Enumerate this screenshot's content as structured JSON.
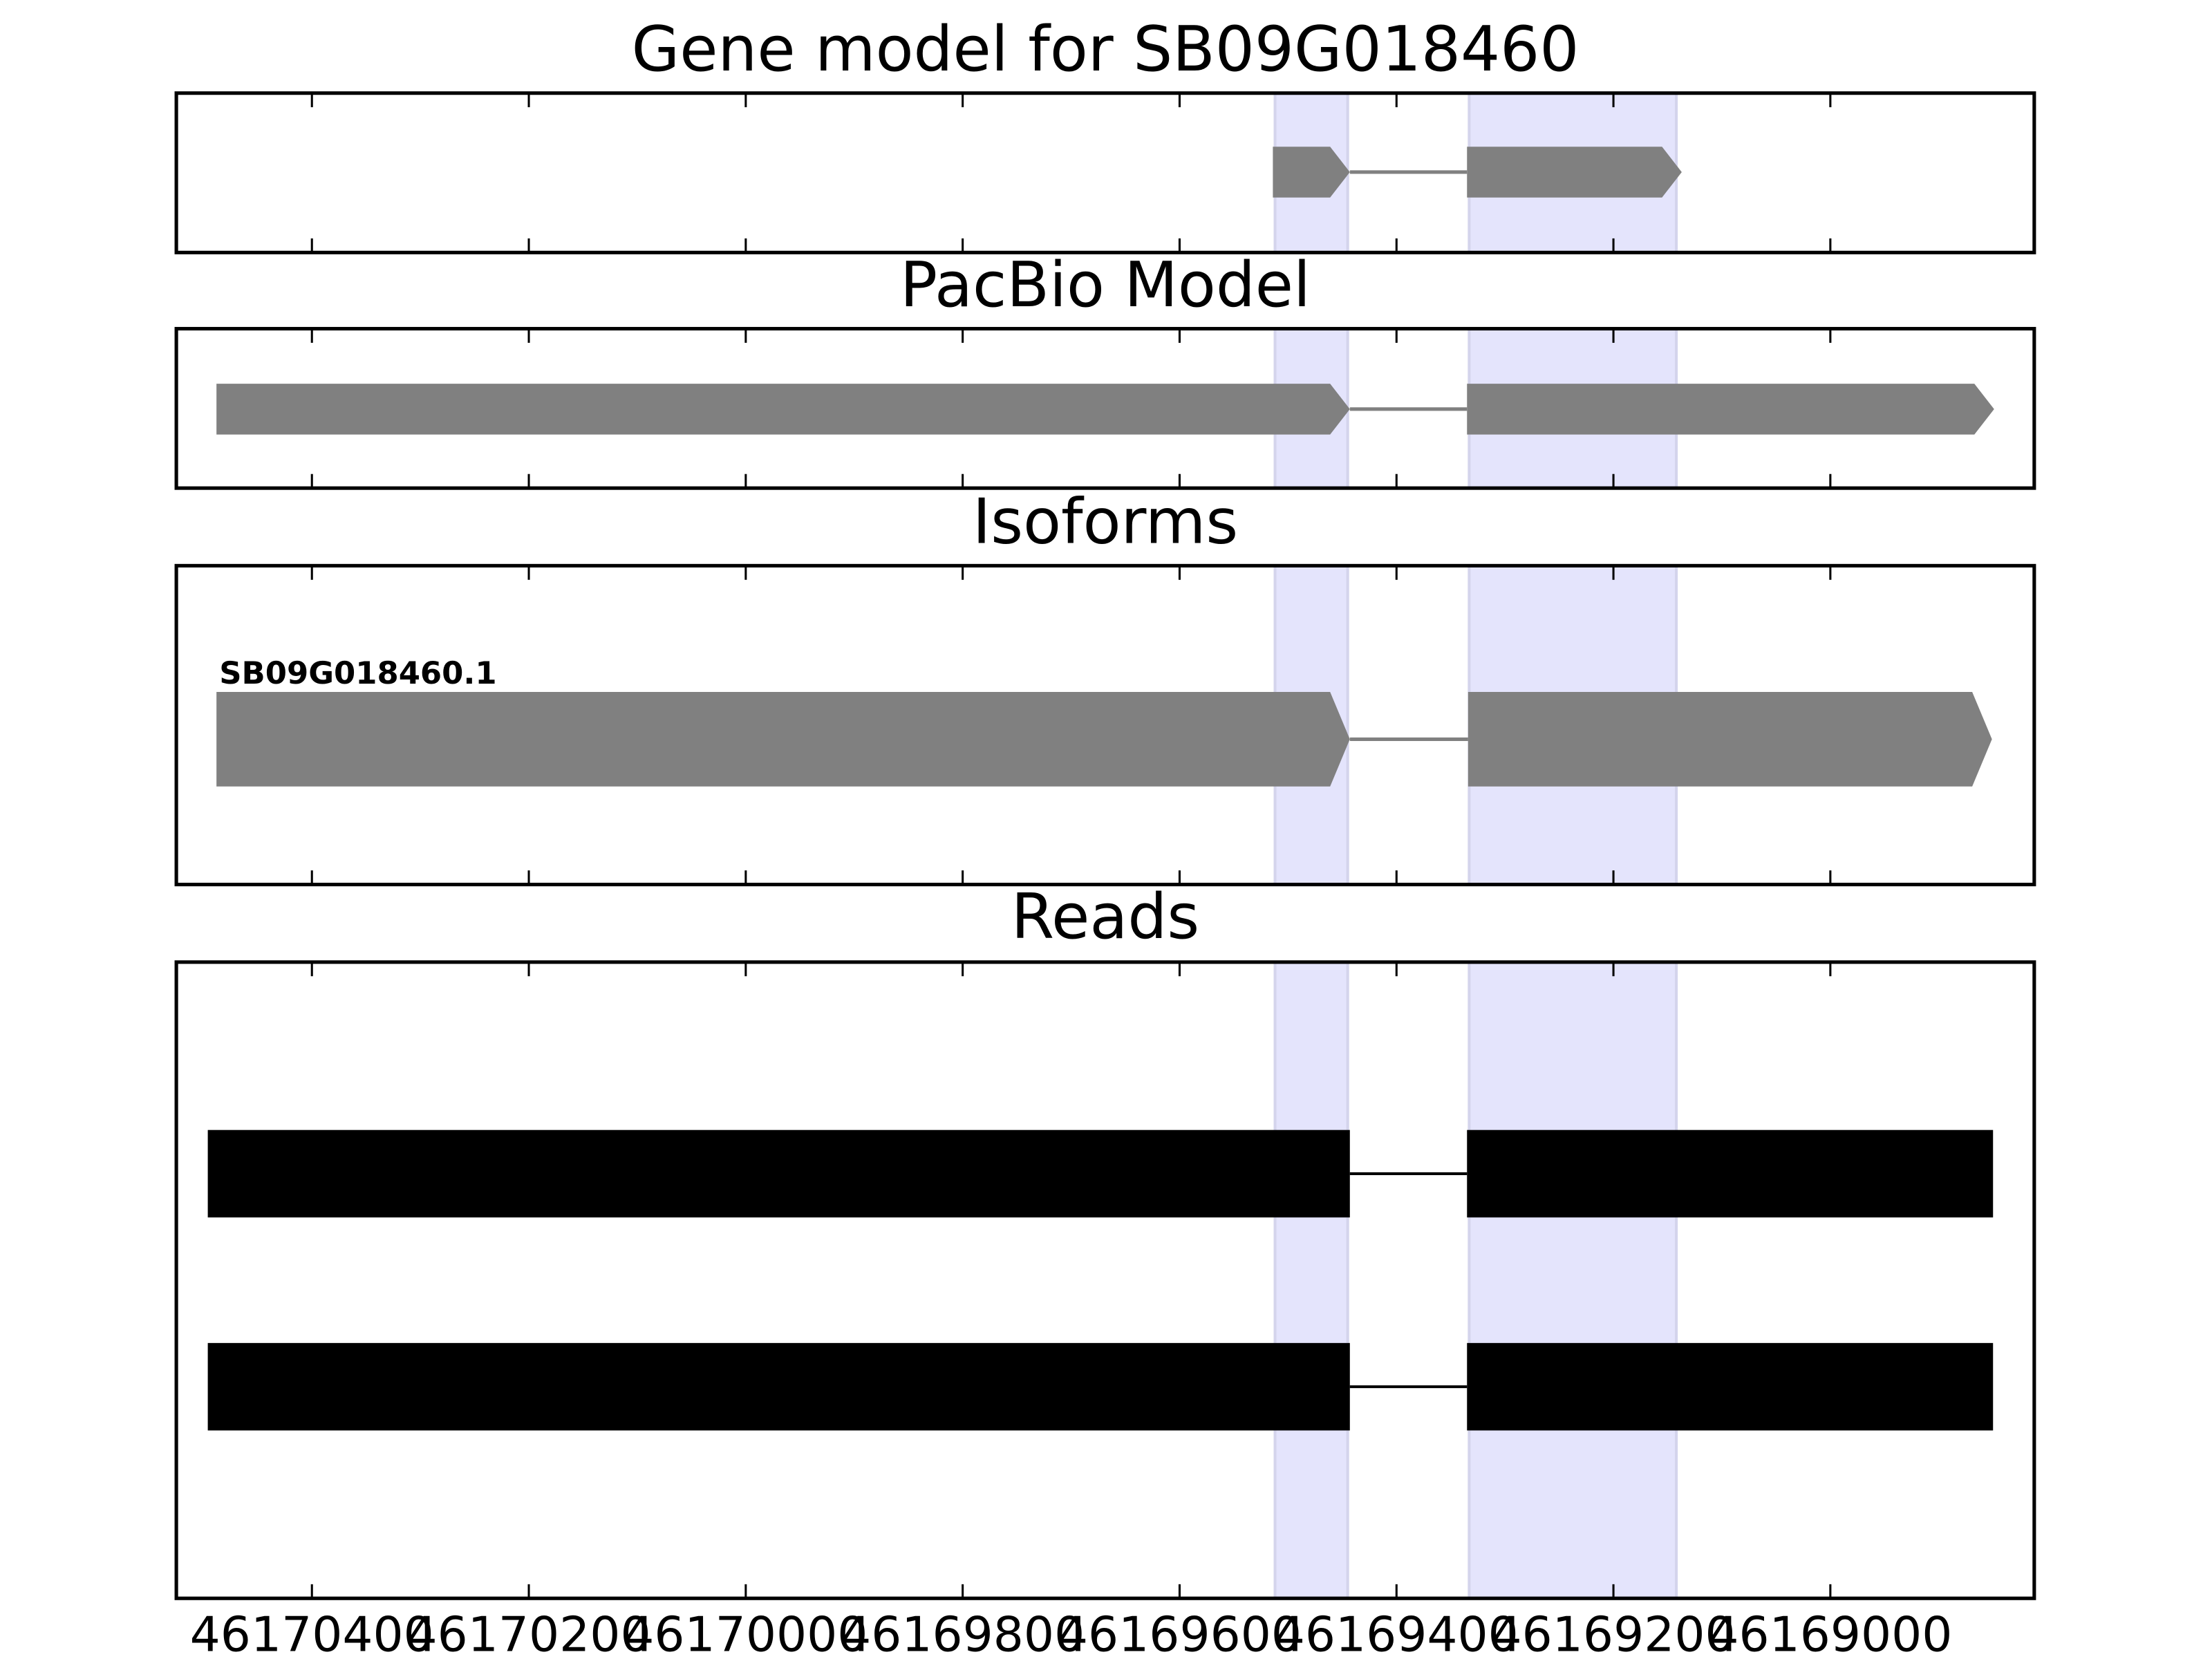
{
  "chart_data": [
    {
      "type": "gene-track",
      "title": "Gene model for SB09G018460",
      "shape": "arrow",
      "xlim": [
        46170525,
        46168812
      ],
      "xticks": [
        46170400,
        46170200,
        46170000,
        46169800,
        46169600,
        46169400,
        46169200,
        46169000
      ],
      "highlight_color": "#e4e4fc",
      "highlights": [
        [
          46169512,
          46169445
        ],
        [
          46169333,
          46169142
        ]
      ],
      "features": [
        {
          "color": "#808080",
          "exons": [
            [
              46169514,
              46169443
            ],
            [
              46169335,
              46169137
            ]
          ]
        }
      ]
    },
    {
      "type": "gene-track",
      "title": "PacBio Model",
      "shape": "arrow",
      "xlim": [
        46170525,
        46168812
      ],
      "xticks": [
        46170400,
        46170200,
        46170000,
        46169800,
        46169600,
        46169400,
        46169200,
        46169000
      ],
      "highlight_color": "#e4e4fc",
      "highlights": [
        [
          46169512,
          46169445
        ],
        [
          46169333,
          46169142
        ]
      ],
      "features": [
        {
          "color": "#808080",
          "exons": [
            [
              46170488,
              46169443
            ],
            [
              46169335,
              46168849
            ]
          ]
        }
      ]
    },
    {
      "type": "gene-track",
      "title": "Isoforms",
      "shape": "arrow",
      "xlim": [
        46170525,
        46168812
      ],
      "xticks": [
        46170400,
        46170200,
        46170000,
        46169800,
        46169600,
        46169400,
        46169200,
        46169000
      ],
      "highlight_color": "#e4e4fc",
      "highlights": [
        [
          46169512,
          46169445
        ],
        [
          46169333,
          46169142
        ]
      ],
      "features": [
        {
          "name": "SB09G018460.1",
          "color": "#808080",
          "exons": [
            [
              46170488,
              46169443
            ],
            [
              46169334,
              46168851
            ]
          ]
        }
      ]
    },
    {
      "type": "gene-track",
      "title": "Reads",
      "shape": "box",
      "xlim": [
        46170525,
        46168812
      ],
      "xticks": [
        46170400,
        46170200,
        46170000,
        46169800,
        46169600,
        46169400,
        46169200,
        46169000
      ],
      "highlight_color": "#e4e4fc",
      "highlights": [
        [
          46169512,
          46169445
        ],
        [
          46169333,
          46169142
        ]
      ],
      "features": [
        {
          "color": "#000000",
          "exons": [
            [
              46170496,
              46169443
            ],
            [
              46169335,
              46168850
            ]
          ]
        },
        {
          "color": "#000000",
          "exons": [
            [
              46170496,
              46169443
            ],
            [
              46169335,
              46168850
            ]
          ]
        }
      ]
    }
  ]
}
